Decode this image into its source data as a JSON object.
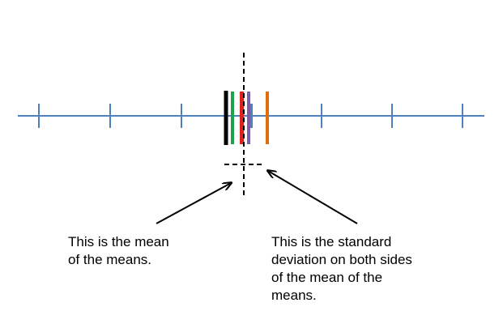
{
  "number_line": {
    "color": "#4f81bd"
  },
  "mean_marks": [
    {
      "name": "black-mean-mark",
      "color": "#000000"
    },
    {
      "name": "green-mean-mark",
      "color": "#1fa34a"
    },
    {
      "name": "red-mean-mark",
      "color": "#e0201b"
    },
    {
      "name": "purple-mean-mark",
      "color": "#7b5ea7"
    },
    {
      "name": "blue-mean-mark",
      "color": "#4f81bd"
    },
    {
      "name": "orange-mean-mark",
      "color": "#e36c0a"
    }
  ],
  "guides": {
    "color": "#000000",
    "style": "dashed"
  },
  "arrows": {
    "color": "#000000"
  },
  "captions": {
    "mean_of_means": [
      "This is the mean",
      "of the means."
    ],
    "standard_deviation": [
      "This is the standard",
      "deviation on both sides",
      "of the mean of the",
      "means."
    ]
  }
}
